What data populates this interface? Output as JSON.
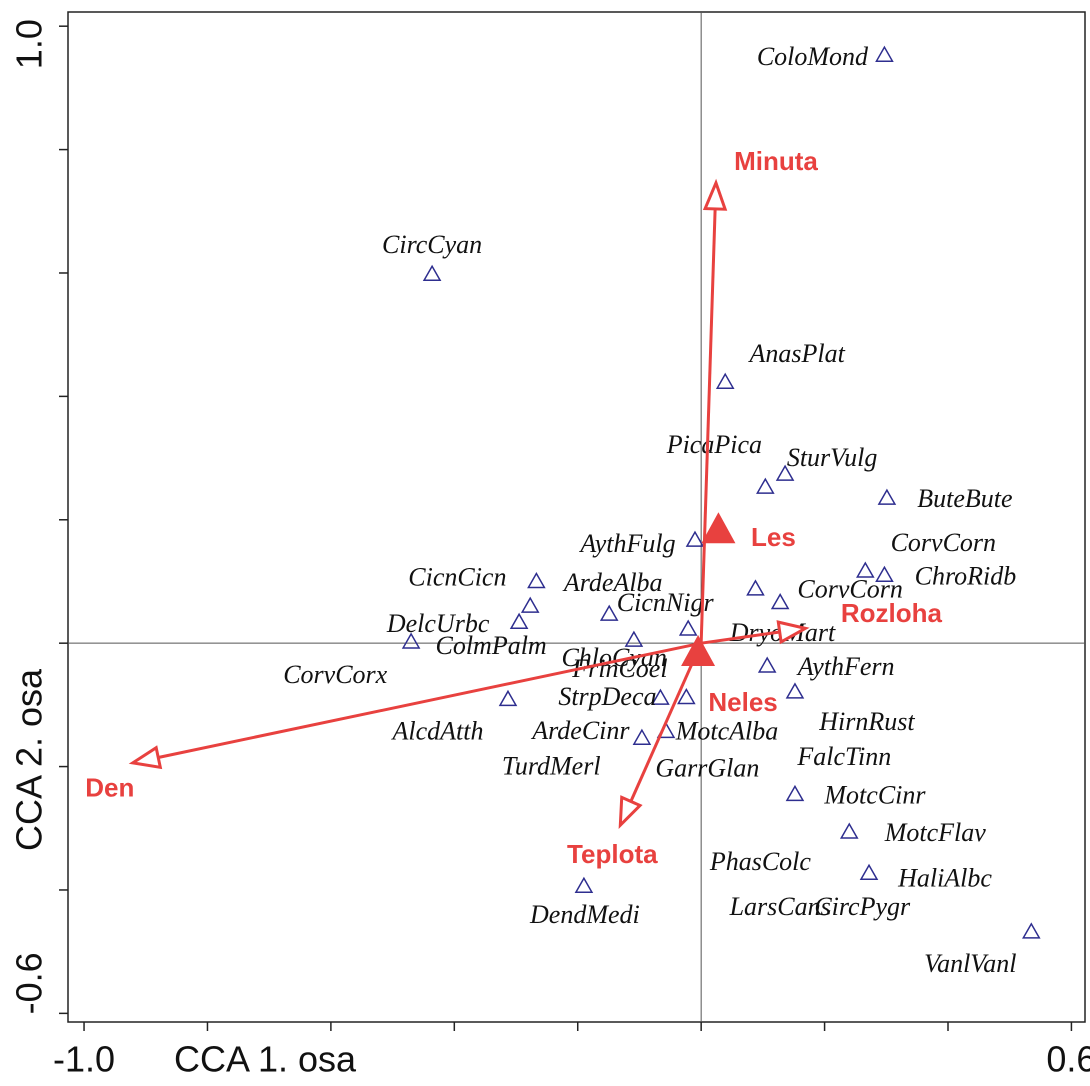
{
  "chart_data": {
    "type": "biplot",
    "xlabel": "CCA 1. osa",
    "ylabel": "CCA 2. osa",
    "xlim": [
      -1.026,
      0.622
    ],
    "ylim": [
      -0.614,
      1.023
    ],
    "xticks": [
      {
        "value": -1.0,
        "label": "-1.0"
      },
      {
        "value": -0.8,
        "label": null
      },
      {
        "value": -0.6,
        "label": null
      },
      {
        "value": -0.4,
        "label": null
      },
      {
        "value": -0.2,
        "label": null
      },
      {
        "value": 0,
        "label": null
      },
      {
        "value": 0.2,
        "label": null
      },
      {
        "value": 0.4,
        "label": null
      },
      {
        "value": 0.6,
        "label": "0.6"
      }
    ],
    "yticks": [
      {
        "value": -0.6,
        "label": "-0.6"
      },
      {
        "value": -0.4,
        "label": null
      },
      {
        "value": -0.2,
        "label": null
      },
      {
        "value": 0,
        "label": null
      },
      {
        "value": 0.2,
        "label": null
      },
      {
        "value": 0.4,
        "label": null
      },
      {
        "value": 0.6,
        "label": null
      },
      {
        "value": 0.8,
        "label": null
      },
      {
        "value": 1.0,
        "label": "1.0"
      }
    ],
    "species_color": "#2e2e8f",
    "env_color": "#e8413f",
    "species": [
      {
        "name": "ColoMond",
        "x": 0.297,
        "y": 0.953,
        "symbol": true
      },
      {
        "name": "CircCyan",
        "x": -0.436,
        "y": 0.598,
        "symbol": true
      },
      {
        "name": "AnasPlat",
        "x": 0.039,
        "y": 0.423,
        "symbol": true
      },
      {
        "name": "PicaPica",
        "x": 0.104,
        "y": 0.253,
        "symbol": true
      },
      {
        "name": "SturVulg",
        "x": 0.136,
        "y": 0.274,
        "symbol": true
      },
      {
        "name": "ButeBute",
        "x": 0.301,
        "y": 0.235,
        "symbol": true
      },
      {
        "name": "AythFulg",
        "x": -0.01,
        "y": 0.167,
        "symbol": true
      },
      {
        "name": "CorvCorn",
        "x": 0.266,
        "y": 0.117,
        "symbol": true
      },
      {
        "name": "ChroRidb",
        "x": 0.297,
        "y": 0.11,
        "symbol": true
      },
      {
        "name": "CorvCorn",
        "x": 0.128,
        "y": 0.066,
        "symbol": true
      },
      {
        "name": "CicnCicn",
        "x": -0.267,
        "y": 0.1,
        "symbol": true
      },
      {
        "name": "ArdeAlba",
        "x": -0.277,
        "y": 0.06,
        "symbol": true
      },
      {
        "name": "DelcUrbc",
        "x": -0.47,
        "y": 0.002,
        "symbol": true
      },
      {
        "name": "ColmPalm",
        "x": -0.295,
        "y": 0.034,
        "symbol": true
      },
      {
        "name": "CicnNigr",
        "x": -0.149,
        "y": 0.047,
        "symbol": true
      },
      {
        "name": "FrinCoel",
        "x": -0.109,
        "y": 0.005,
        "symbol": true
      },
      {
        "name": "ChloCyan",
        "x": -0.021,
        "y": 0.023,
        "symbol": true
      },
      {
        "name": "DryoMart",
        "x": 0.088,
        "y": 0.088,
        "symbol": true
      },
      {
        "name": "CorvCorx",
        "x": -0.593,
        "y": -0.055,
        "symbol": false
      },
      {
        "name": "AythFern",
        "x": 0.107,
        "y": -0.037,
        "symbol": true
      },
      {
        "name": "AlcdAtth",
        "x": -0.313,
        "y": -0.091,
        "symbol": true
      },
      {
        "name": "StrpDeca",
        "x": -0.066,
        "y": -0.089,
        "symbol": true
      },
      {
        "name": "ArdeCinr",
        "x": -0.096,
        "y": -0.154,
        "symbol": true
      },
      {
        "name": "MotcAlba",
        "x": -0.057,
        "y": -0.143,
        "symbol": true
      },
      {
        "name": "HirnRust",
        "x": 0.152,
        "y": -0.079,
        "symbol": true
      },
      {
        "name": "TurdMerl",
        "x": -0.243,
        "y": -0.203,
        "symbol": false
      },
      {
        "name": "GarrGlan",
        "x": -0.024,
        "y": -0.088,
        "symbol": true
      },
      {
        "name": "FalcTinn",
        "x": 0.232,
        "y": -0.188,
        "symbol": false
      },
      {
        "name": "MotcCinr",
        "x": 0.152,
        "y": -0.245,
        "symbol": true
      },
      {
        "name": "MotcFlav",
        "x": 0.24,
        "y": -0.306,
        "symbol": true
      },
      {
        "name": "HaliAlbc",
        "x": 0.272,
        "y": -0.373,
        "symbol": true
      },
      {
        "name": "PhasColc",
        "x": 0.096,
        "y": -0.358,
        "symbol": false
      },
      {
        "name": "LarsCans",
        "x": 0.128,
        "y": -0.431,
        "symbol": false
      },
      {
        "name": "CircPygr",
        "x": 0.261,
        "y": -0.431,
        "symbol": false
      },
      {
        "name": "VanlVanl",
        "x": 0.535,
        "y": -0.468,
        "symbol": true
      },
      {
        "name": "DendMedi",
        "x": -0.19,
        "y": -0.394,
        "symbol": true
      }
    ],
    "env": [
      {
        "name": "Minuta",
        "x": 0.024,
        "y": 0.746
      },
      {
        "name": "Den",
        "x": -0.921,
        "y": -0.194
      },
      {
        "name": "Rozloha",
        "x": 0.169,
        "y": 0.024
      },
      {
        "name": "Teplota",
        "x": -0.131,
        "y": -0.295
      }
    ],
    "nominal": [
      {
        "name": "Les",
        "x": 0.028,
        "y": 0.183
      },
      {
        "name": "Neles",
        "x": -0.005,
        "y": -0.016
      }
    ]
  }
}
